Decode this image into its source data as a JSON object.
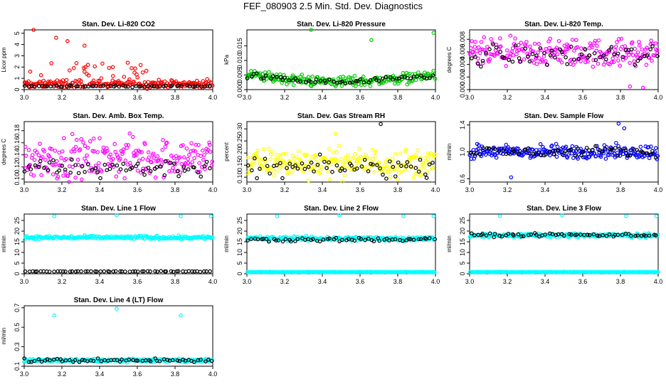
{
  "title": "FEF_080903  2.5 Min. Std. Dev. Diagnostics",
  "colors": {
    "primary": "#000000",
    "red": "#ff0000",
    "green": "#00cc00",
    "magenta": "#ff00ff",
    "yellow": "#ffff00",
    "blue": "#0000ff",
    "cyan": "#00ffff"
  },
  "chart_data": [
    {
      "type": "scatter",
      "title": "Stan. Dev. Li-820 CO2",
      "xlabel": "",
      "ylabel": "Licor ppm",
      "xlim": [
        3.0,
        4.0
      ],
      "ylim": [
        0,
        5.3
      ],
      "xticks": [
        "3.0",
        "3.2",
        "3.4",
        "3.6",
        "3.8",
        "4.0"
      ],
      "yticks": [
        "0",
        "1",
        "2",
        "3",
        "4",
        "5"
      ],
      "series": [
        {
          "name": "secondary",
          "color": "red",
          "level": 0.5,
          "spread": 0.25,
          "spikes": [
            [
              3.05,
              5.3
            ],
            [
              3.17,
              4.6
            ],
            [
              3.23,
              4.3
            ],
            [
              3.32,
              3.9
            ],
            [
              3.47,
              2.0
            ],
            [
              3.57,
              1.9
            ]
          ]
        },
        {
          "name": "primary",
          "color": "primary",
          "level": 0.3,
          "spread": 0.05,
          "spikes": []
        }
      ]
    },
    {
      "type": "scatter",
      "title": "Stan. Dev. Li-820 Pressure",
      "xlabel": "",
      "ylabel": "kPa",
      "xlim": [
        3.0,
        4.0
      ],
      "ylim": [
        0,
        0.0205
      ],
      "xticks": [
        "3.0",
        "3.2",
        "3.4",
        "3.6",
        "3.8",
        "4.0"
      ],
      "yticks": [
        "0.000",
        "0.005",
        "0.010",
        "0.015"
      ],
      "series": [
        {
          "name": "secondary",
          "color": "green",
          "level": 0.005,
          "spread": 0.0014,
          "spikes": [
            [
              3.34,
              0.0205
            ],
            [
              3.66,
              0.017
            ],
            [
              3.99,
              0.0195
            ]
          ]
        },
        {
          "name": "primary",
          "color": "primary",
          "level": 0.0048,
          "spread": 0.0008,
          "spikes": []
        }
      ]
    },
    {
      "type": "scatter",
      "title": "Stan. Dev. Li-820 Temp.",
      "xlabel": "",
      "ylabel": "degrees C",
      "xlim": [
        3.0,
        4.0
      ],
      "ylim": [
        0,
        0.0095
      ],
      "xticks": [
        "3.0",
        "3.2",
        "3.4",
        "3.6",
        "3.8",
        "4.0"
      ],
      "yticks": [
        "0.000",
        "0.002",
        "0.004",
        "0.006",
        "0.008"
      ],
      "series": [
        {
          "name": "secondary",
          "color": "magenta",
          "level": 0.0058,
          "spread": 0.0017,
          "spikes": [
            [
              3.85,
              0.0005
            ],
            [
              3.92,
              0.0003
            ]
          ]
        },
        {
          "name": "primary",
          "color": "primary",
          "level": 0.0055,
          "spread": 0.0013,
          "spikes": []
        }
      ]
    },
    {
      "type": "scatter",
      "title": "Stan. Dev. Amb. Box Temp.",
      "xlabel": "",
      "ylabel": "degrees C",
      "xlim": [
        3.0,
        4.0
      ],
      "ylim": [
        0.095,
        0.195
      ],
      "xticks": [
        "3.0",
        "3.2",
        "3.4",
        "3.6",
        "3.8",
        "4.0"
      ],
      "yticks": [
        "0.10",
        "0.12",
        "0.14",
        "0.16",
        "0.18"
      ],
      "series": [
        {
          "name": "secondary",
          "color": "magenta",
          "level": 0.135,
          "spread": 0.025,
          "spikes": []
        },
        {
          "name": "primary",
          "color": "primary",
          "level": 0.118,
          "spread": 0.012,
          "spikes": []
        }
      ]
    },
    {
      "type": "scatter",
      "title": "Stan. Dev. Gas Stream RH",
      "xlabel": "",
      "ylabel": "percent",
      "xlim": [
        3.0,
        4.0
      ],
      "ylim": [
        0.08,
        0.33
      ],
      "xticks": [
        "3.0",
        "3.2",
        "3.4",
        "3.6",
        "3.8",
        "4.0"
      ],
      "yticks": [
        "0.10",
        "0.15",
        "0.20",
        "0.25",
        "0.30"
      ],
      "series": [
        {
          "name": "secondary",
          "color": "yellow",
          "level": 0.16,
          "spread": 0.045,
          "spikes": [
            [
              3.47,
              0.28
            ]
          ]
        },
        {
          "name": "primary",
          "color": "primary",
          "level": 0.14,
          "spread": 0.03,
          "spikes": [
            [
              3.71,
              0.32
            ]
          ]
        }
      ]
    },
    {
      "type": "scatter",
      "title": "Stan. Dev. Sample Flow",
      "xlabel": "",
      "ylabel": "ml/min",
      "xlim": [
        3.0,
        4.0
      ],
      "ylim": [
        0.55,
        1.45
      ],
      "xticks": [
        "3.0",
        "3.2",
        "3.4",
        "3.6",
        "3.8",
        "4.0"
      ],
      "yticks": [
        "0.6",
        "1.0",
        "1.4"
      ],
      "series": [
        {
          "name": "secondary",
          "color": "blue",
          "level": 1.0,
          "spread": 0.08,
          "spikes": [
            [
              3.79,
              1.42
            ],
            [
              3.82,
              1.35
            ],
            [
              3.22,
              0.62
            ]
          ]
        },
        {
          "name": "primary",
          "color": "primary",
          "level": 1.0,
          "spread": 0.06,
          "spikes": []
        }
      ]
    },
    {
      "type": "scatter",
      "title": "Stan. Dev. Line 1 Flow",
      "xlabel": "",
      "ylabel": "ml/min",
      "xlim": [
        3.0,
        4.0
      ],
      "ylim": [
        0,
        28
      ],
      "xticks": [
        "3.0",
        "3.2",
        "3.4",
        "3.6",
        "3.8",
        "4.0"
      ],
      "yticks": [
        "0",
        "5",
        "10",
        "15",
        "20",
        "25"
      ],
      "series": [
        {
          "name": "secondary",
          "color": "cyan",
          "level": 17,
          "spread": 0.6,
          "spikes": [
            [
              3.16,
              27
            ],
            [
              3.49,
              27.5
            ],
            [
              3.83,
              27
            ],
            [
              3.99,
              27
            ]
          ]
        },
        {
          "name": "primary",
          "color": "primary",
          "level": 1.1,
          "spread": 0.1,
          "spikes": []
        }
      ]
    },
    {
      "type": "scatter",
      "title": "Stan. Dev. Line 2 Flow",
      "xlabel": "",
      "ylabel": "ml/min",
      "xlim": [
        3.0,
        4.0
      ],
      "ylim": [
        0,
        28
      ],
      "xticks": [
        "3.0",
        "3.2",
        "3.4",
        "3.6",
        "3.8",
        "4.0"
      ],
      "yticks": [
        "0",
        "5",
        "10",
        "15",
        "20",
        "25"
      ],
      "series": [
        {
          "name": "secondary",
          "color": "cyan",
          "level": 0.8,
          "spread": 0.1,
          "spikes": [
            [
              3.16,
              27
            ],
            [
              3.49,
              27.5
            ],
            [
              3.83,
              27
            ],
            [
              3.99,
              27
            ]
          ]
        },
        {
          "name": "secondary",
          "color": "cyan",
          "level": 16.5,
          "spread": 0.8,
          "spikes": []
        },
        {
          "name": "primary",
          "color": "primary",
          "level": 16,
          "spread": 0.7,
          "spikes": []
        }
      ]
    },
    {
      "type": "scatter",
      "title": "Stan. Dev. Line 3 Flow",
      "xlabel": "",
      "ylabel": "ml/min",
      "xlim": [
        3.0,
        4.0
      ],
      "ylim": [
        0,
        28
      ],
      "xticks": [
        "3.0",
        "3.2",
        "3.4",
        "3.6",
        "3.8",
        "4.0"
      ],
      "yticks": [
        "0",
        "5",
        "10",
        "15",
        "20",
        "25"
      ],
      "series": [
        {
          "name": "secondary",
          "color": "cyan",
          "level": 0.8,
          "spread": 0.1,
          "spikes": [
            [
              3.16,
              27
            ],
            [
              3.49,
              27.5
            ],
            [
              3.83,
              27
            ],
            [
              3.99,
              27
            ]
          ]
        },
        {
          "name": "secondary",
          "color": "cyan",
          "level": 18,
          "spread": 0.7,
          "spikes": []
        },
        {
          "name": "primary",
          "color": "primary",
          "level": 18.2,
          "spread": 0.6,
          "spikes": []
        }
      ]
    },
    {
      "type": "scatter",
      "title": "Stan. Dev. Line 4 (LT) Flow",
      "xlabel": "",
      "ylabel": "ml/min",
      "xlim": [
        3.0,
        4.0
      ],
      "ylim": [
        0.1,
        0.72
      ],
      "xticks": [
        "3.0",
        "3.2",
        "3.4",
        "3.6",
        "3.8",
        "4.0"
      ],
      "yticks": [
        "0.1",
        "0.3",
        "0.5",
        "0.7"
      ],
      "series": [
        {
          "name": "secondary",
          "color": "cyan",
          "level": 0.16,
          "spread": 0.012,
          "spikes": [
            [
              3.16,
              0.62
            ],
            [
              3.49,
              0.69
            ],
            [
              3.83,
              0.62
            ]
          ]
        },
        {
          "name": "primary",
          "color": "primary",
          "level": 0.16,
          "spread": 0.015,
          "spikes": []
        }
      ]
    }
  ]
}
